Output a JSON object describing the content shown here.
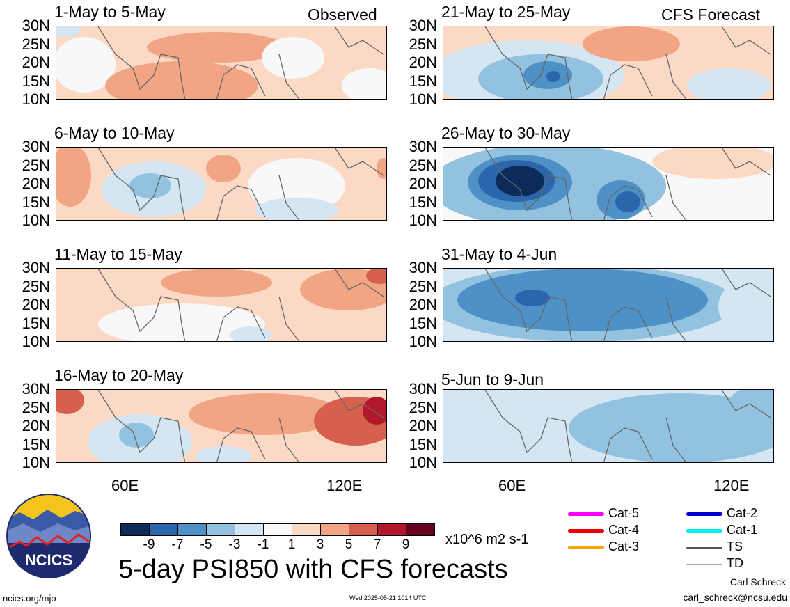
{
  "observed_label": "Observed",
  "forecast_label": "CFS Forecast",
  "lat_labels": [
    "30N",
    "25N",
    "20N",
    "15N",
    "10N"
  ],
  "lon_labels": [
    "60E",
    "120E"
  ],
  "panels": [
    {
      "title": "1-May to 5-May"
    },
    {
      "title": "21-May to 25-May"
    },
    {
      "title": "6-May to 10-May"
    },
    {
      "title": "26-May to 30-May"
    },
    {
      "title": "11-May to 15-May"
    },
    {
      "title": "31-May to 4-Jun"
    },
    {
      "title": "16-May to 20-May"
    },
    {
      "title": "5-Jun to 9-Jun"
    }
  ],
  "colorbar": {
    "ticks": [
      "-9",
      "-7",
      "-5",
      "-3",
      "-1",
      "1",
      "3",
      "5",
      "7",
      "9"
    ],
    "colors": [
      "#0d2b5a",
      "#2b66ad",
      "#4e91c6",
      "#92c2df",
      "#d4e6f1",
      "#f8f8f8",
      "#fbd9c4",
      "#f1a584",
      "#d6604d",
      "#b2182b",
      "#67001f"
    ],
    "units": "x10^6 m2 s-1"
  },
  "legend": [
    {
      "label": "Cat-5",
      "color": "#ff00ff"
    },
    {
      "label": "Cat-4",
      "color": "#ee0000"
    },
    {
      "label": "Cat-3",
      "color": "#ffa500"
    },
    {
      "label": "Cat-2",
      "color": "#0000cc"
    },
    {
      "label": "Cat-1",
      "color": "#00eeee"
    },
    {
      "label": "TS",
      "color": "#555555"
    },
    {
      "label": "TD",
      "color": "#aaaaaa"
    }
  ],
  "logo_text": "NCICS",
  "main_title": "5-day PSI850 with CFS forecasts",
  "footer": {
    "url": "ncics.org/mjo",
    "timestamp": "Wed 2025-05-21 1014 UTC",
    "author": "Carl Schreck",
    "email": "carl_schreck@ncsu.edu"
  }
}
